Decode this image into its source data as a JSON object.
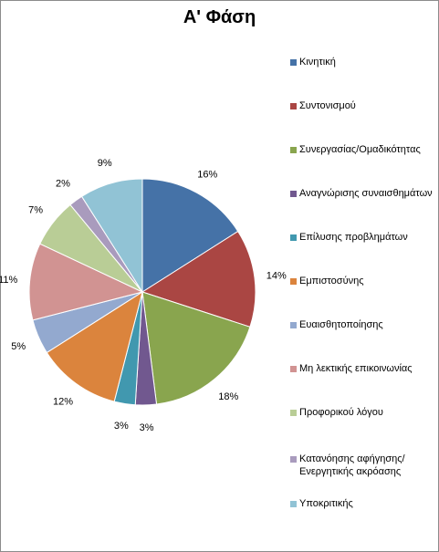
{
  "chart_data": {
    "type": "pie",
    "title": "Α' Φάση",
    "legend_position": "right",
    "slices": [
      {
        "label": "Κινητική",
        "value": 16,
        "display": "16%",
        "color": "#4572A7"
      },
      {
        "label": "Συντονισμού",
        "value": 14,
        "display": "14%",
        "color": "#AA4643"
      },
      {
        "label": "Συνεργασίας/Ομαδικότητας",
        "value": 18,
        "display": "18%",
        "color": "#89A54E"
      },
      {
        "label": "Αναγνώρισης συναισθημάτων",
        "value": 3,
        "display": "3%",
        "color": "#71588F"
      },
      {
        "label": "Επίλυσης προβλημάτων",
        "value": 3,
        "display": "3%",
        "color": "#4198AF"
      },
      {
        "label": "Εμπιστοσύνης",
        "value": 12,
        "display": "12%",
        "color": "#DB843D"
      },
      {
        "label": "Ευαισθητοποίησης",
        "value": 5,
        "display": "5%",
        "color": "#93A9CF"
      },
      {
        "label": "Μη λεκτικής επικοινωνίας",
        "value": 11,
        "display": "11%",
        "color": "#D19392"
      },
      {
        "label": "Προφορικού λόγου",
        "value": 7,
        "display": "7%",
        "color": "#B9CD96"
      },
      {
        "label": "Κατανόησης αφήγησης/Ενεργητικής ακρόασης",
        "value": 2,
        "display": "2%",
        "color": "#A99BBD"
      },
      {
        "label": "Υποκριτικής",
        "value": 9,
        "display": "9%",
        "color": "#91C3D5"
      }
    ]
  }
}
